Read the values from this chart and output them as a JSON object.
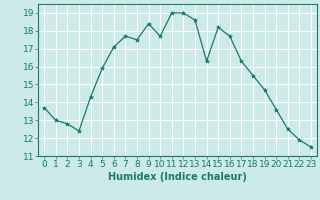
{
  "x": [
    0,
    1,
    2,
    3,
    4,
    5,
    6,
    7,
    8,
    9,
    10,
    11,
    12,
    13,
    14,
    15,
    16,
    17,
    18,
    19,
    20,
    21,
    22,
    23
  ],
  "y": [
    13.7,
    13.0,
    12.8,
    12.4,
    14.3,
    15.9,
    17.1,
    17.7,
    17.5,
    18.4,
    17.7,
    19.0,
    19.0,
    18.6,
    16.3,
    18.2,
    17.7,
    16.3,
    15.5,
    14.7,
    13.6,
    12.5,
    11.9,
    11.5
  ],
  "line_color": "#1a7a6e",
  "marker": "*",
  "marker_size": 3,
  "bg_color": "#cceae7",
  "grid_color": "#ffffff",
  "xlabel": "Humidex (Indice chaleur)",
  "xlim": [
    -0.5,
    23.5
  ],
  "ylim": [
    11,
    19.5
  ],
  "yticks": [
    11,
    12,
    13,
    14,
    15,
    16,
    17,
    18,
    19
  ],
  "tick_color": "#1a7a6e",
  "label_fontsize": 7,
  "tick_fontsize": 6.5
}
